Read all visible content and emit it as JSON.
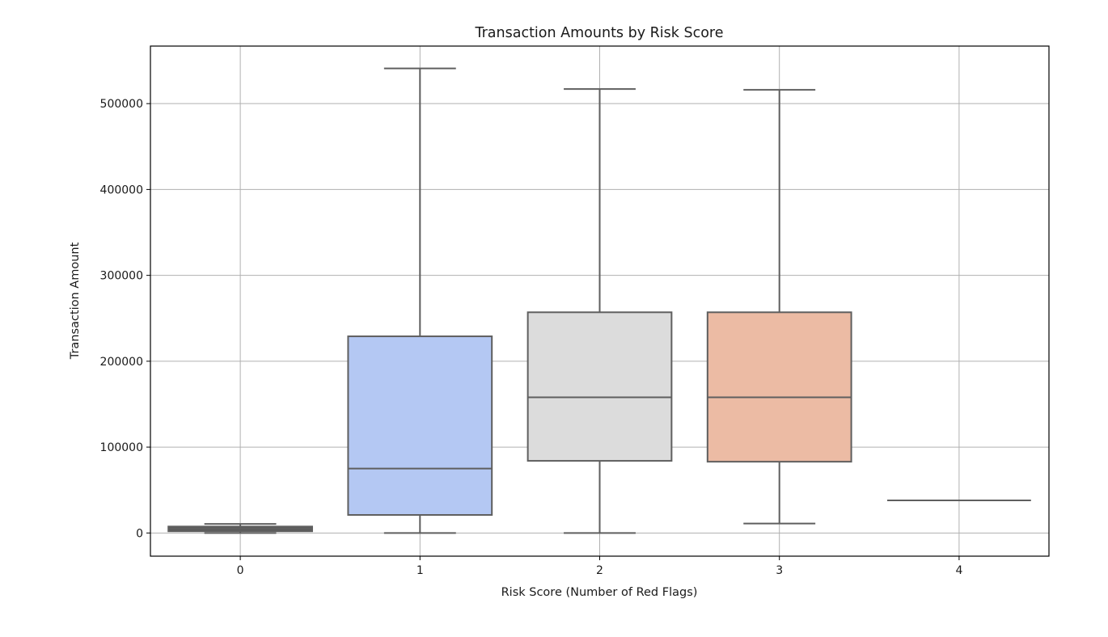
{
  "chart_data": {
    "type": "box",
    "title": "Transaction Amounts by Risk Score",
    "xlabel": "Risk Score (Number of Red Flags)",
    "ylabel": "Transaction Amount",
    "categories": [
      "0",
      "1",
      "2",
      "3",
      "4"
    ],
    "yticks": [
      0,
      100000,
      200000,
      300000,
      400000,
      500000
    ],
    "ylim": [
      -27000,
      567000
    ],
    "grid": true,
    "boxes": [
      {
        "category": "0",
        "min": 0,
        "q1": 2000,
        "median": 5000,
        "q3": 7500,
        "max": 10500,
        "color": "#5a5a5a"
      },
      {
        "category": "1",
        "min": 0,
        "q1": 21000,
        "median": 75000,
        "q3": 229000,
        "max": 541000,
        "color": "#b4c8f3"
      },
      {
        "category": "2",
        "min": 0,
        "q1": 84000,
        "median": 158000,
        "q3": 257000,
        "max": 517000,
        "color": "#dcdcdc"
      },
      {
        "category": "3",
        "min": 11000,
        "q1": 83000,
        "median": 158000,
        "q3": 257000,
        "max": 516000,
        "color": "#ecbba4"
      },
      {
        "category": "4",
        "min": 38000,
        "q1": 38000,
        "median": 38000,
        "q3": 38000,
        "max": 38000,
        "color": "#f4b39a"
      }
    ]
  }
}
